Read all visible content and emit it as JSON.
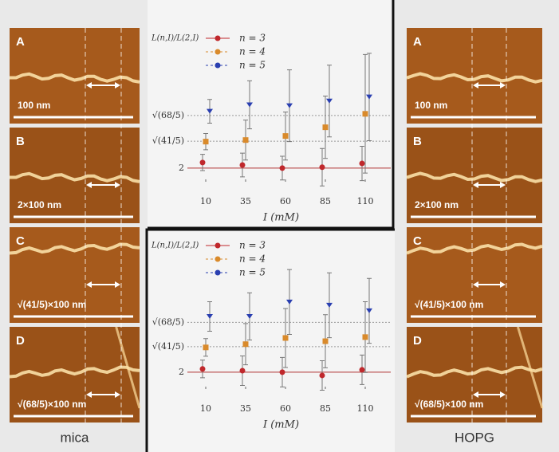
{
  "panels": {
    "mica": {
      "label": "mica",
      "images": [
        {
          "letter": "A",
          "scale": "100 nm"
        },
        {
          "letter": "B",
          "scale": "2×100 nm"
        },
        {
          "letter": "C",
          "scale": "√(41/5)×100 nm"
        },
        {
          "letter": "D",
          "scale": "√(68/5)×100 nm"
        }
      ]
    },
    "hopg": {
      "label": "HOPG",
      "images": [
        {
          "letter": "A",
          "scale": "100 nm"
        },
        {
          "letter": "B",
          "scale": "2×100 nm"
        },
        {
          "letter": "C",
          "scale": "√(41/5)×100 nm"
        },
        {
          "letter": "D",
          "scale": "√(68/5)×100 nm"
        }
      ]
    }
  },
  "chart_data": [
    {
      "type": "scatter",
      "ylabel": "L(n,I)/L(2,I)",
      "xlabel": "I (mM)",
      "x": [
        10,
        35,
        60,
        85,
        110
      ],
      "xlim": [
        -1.5,
        126
      ],
      "xticks": [
        10,
        35,
        60,
        85,
        110
      ],
      "ylim": [
        1.64,
        5.6
      ],
      "yticks": [
        2,
        {
          "value": 2.864,
          "label": "√(41/5)"
        },
        {
          "value": 3.688,
          "label": "√(68/5)"
        }
      ],
      "grid": true,
      "series": [
        {
          "name": "n = 3",
          "color": "#c0282c",
          "values": [
            2.18,
            2.1,
            2.0,
            2.03,
            2.15
          ],
          "errors": [
            0.26,
            0.38,
            0.38,
            0.6,
            0.55
          ]
        },
        {
          "name": "n = 4",
          "color": "#d98a2b",
          "values": [
            2.85,
            2.9,
            3.03,
            3.31,
            3.74
          ],
          "errors": [
            0.26,
            0.64,
            0.77,
            1.0,
            1.9
          ]
        },
        {
          "name": "n = 5",
          "color": "#2a3fb0",
          "values": [
            3.82,
            4.03,
            4.0,
            4.15,
            4.28
          ],
          "errors": [
            0.38,
            0.77,
            1.15,
            1.15,
            1.4
          ]
        }
      ]
    },
    {
      "type": "scatter",
      "ylabel": "L(n,I)/L(2,I)",
      "xlabel": "I (mM)",
      "x": [
        10,
        35,
        60,
        85,
        110
      ],
      "xlim": [
        -1.5,
        126
      ],
      "xticks": [
        10,
        35,
        60,
        85,
        110
      ],
      "ylim": [
        1.51,
        5.7
      ],
      "yticks": [
        2,
        {
          "value": 2.864,
          "label": "√(41/5)"
        },
        {
          "value": 3.688,
          "label": "√(68/5)"
        }
      ],
      "grid": true,
      "series": [
        {
          "name": "n = 3",
          "color": "#c0282c",
          "values": [
            2.11,
            2.05,
            2.0,
            1.89,
            2.08
          ],
          "errors": [
            0.3,
            0.5,
            0.5,
            0.5,
            0.5
          ]
        },
        {
          "name": "n = 4",
          "color": "#d98a2b",
          "values": [
            2.84,
            2.95,
            3.16,
            3.05,
            3.19
          ],
          "errors": [
            0.3,
            0.7,
            1.0,
            0.9,
            1.2
          ]
        },
        {
          "name": "n = 5",
          "color": "#2a3fb0",
          "values": [
            3.89,
            3.89,
            4.38,
            4.27,
            4.08
          ],
          "errors": [
            0.5,
            0.8,
            1.1,
            1.1,
            1.1
          ]
        }
      ]
    }
  ]
}
